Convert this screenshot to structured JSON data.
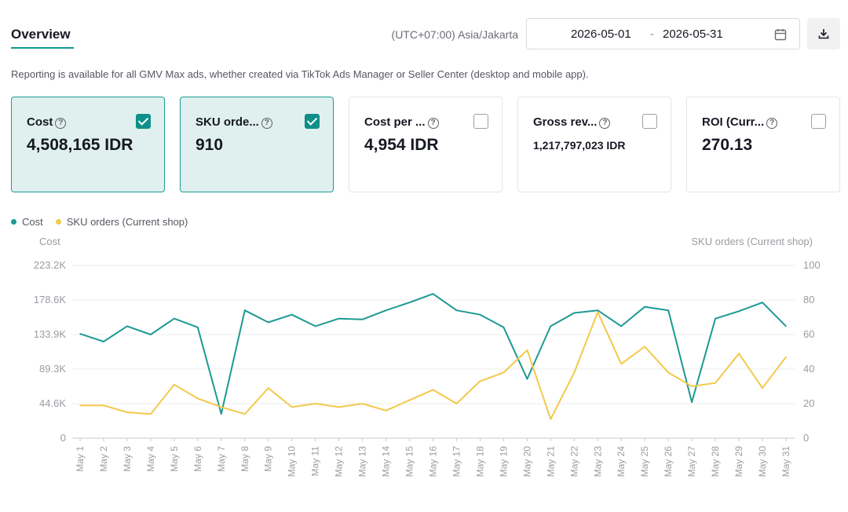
{
  "header": {
    "tab_label": "Overview",
    "timezone": "(UTC+07:00) Asia/Jakarta",
    "date_start": "2026-05-01",
    "date_separator": "-",
    "date_end": "2026-05-31",
    "calendar_icon": "calendar-icon",
    "download_icon": "download-icon"
  },
  "info_text": "Reporting is available for all GMV Max ads, whether created via TikTok Ads Manager or Seller Center (desktop and mobile app).",
  "metrics": [
    {
      "label": "Cost",
      "value": "4,508,165 IDR",
      "checked": true
    },
    {
      "label": "SKU orde...",
      "value": "910",
      "checked": true
    },
    {
      "label": "Cost per ...",
      "value": "4,954 IDR",
      "checked": false
    },
    {
      "label": "Gross rev...",
      "value": "1,217,797,023 IDR",
      "checked": false
    },
    {
      "label": "ROI (Curr...",
      "value": "270.13",
      "checked": false
    }
  ],
  "colors": {
    "accent": "#0f9a94",
    "cost_series": "#1d9994",
    "orders_series": "#f2c94c"
  },
  "chart_data": {
    "type": "line",
    "legend": [
      "Cost",
      "SKU orders (Current shop)"
    ],
    "left_axis_title": "Cost",
    "right_axis_title": "SKU orders (Current shop)",
    "left_ticks": [
      "0",
      "44.6K",
      "89.3K",
      "133.9K",
      "178.6K",
      "223.2K"
    ],
    "right_ticks": [
      "0",
      "20",
      "40",
      "60",
      "80",
      "100"
    ],
    "left_ylim": [
      0,
      223200
    ],
    "right_ylim": [
      0,
      100
    ],
    "categories": [
      "May 1",
      "May 2",
      "May 3",
      "May 4",
      "May 5",
      "May 6",
      "May 7",
      "May 8",
      "May 9",
      "May 10",
      "May 11",
      "May 12",
      "May 13",
      "May 14",
      "May 15",
      "May 16",
      "May 17",
      "May 18",
      "May 19",
      "May 20",
      "May 21",
      "May 22",
      "May 23",
      "May 24",
      "May 25",
      "May 26",
      "May 27",
      "May 28",
      "May 29",
      "May 30",
      "May 31"
    ],
    "series": [
      {
        "name": "Cost",
        "axis": "left",
        "values": [
          134800,
          124800,
          144700,
          133900,
          154500,
          143300,
          31400,
          165200,
          149600,
          159600,
          144700,
          154500,
          153400,
          165200,
          175300,
          186500,
          165200,
          159600,
          143300,
          76500,
          144700,
          161800,
          165200,
          144700,
          169700,
          165200,
          46600,
          154500,
          164100,
          175300,
          144700
        ]
      },
      {
        "name": "SKU orders (Current shop)",
        "axis": "right",
        "values": [
          19,
          19,
          15,
          14,
          31,
          23,
          18,
          14,
          29,
          18,
          20,
          18,
          20,
          16,
          22,
          28,
          20,
          33,
          38,
          51,
          11,
          38,
          73,
          43,
          53,
          38,
          30,
          32,
          49,
          29,
          47
        ]
      }
    ],
    "grid": true,
    "legend_position": "top-left"
  }
}
